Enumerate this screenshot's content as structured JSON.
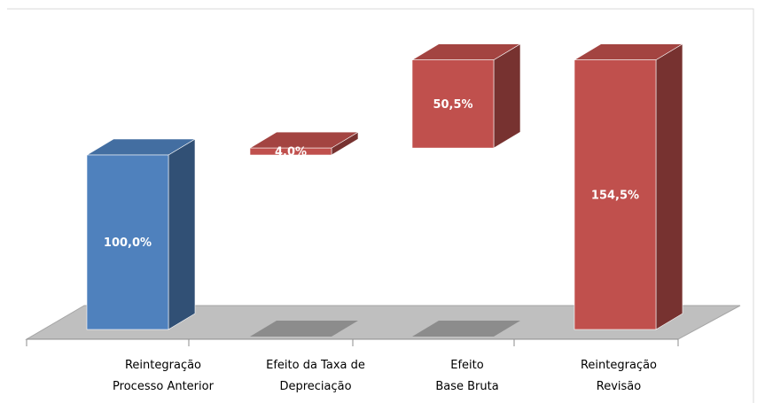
{
  "chart_data": {
    "type": "waterfall",
    "categories": [
      "Reintegração\nProcesso Anterior",
      "Efeito da Taxa de\nDepreciação",
      "Efeito\nBase Bruta",
      "Reintegração\nRevisão"
    ],
    "values": [
      100.0,
      4.0,
      50.5,
      154.5
    ],
    "value_labels": [
      "100,0%",
      "4,0%",
      "50,5%",
      "154,5%"
    ],
    "measure": [
      "absolute",
      "relative",
      "relative",
      "total"
    ],
    "colors": [
      "#4f81bd",
      "#c0504d",
      "#c0504d",
      "#c0504d"
    ]
  }
}
